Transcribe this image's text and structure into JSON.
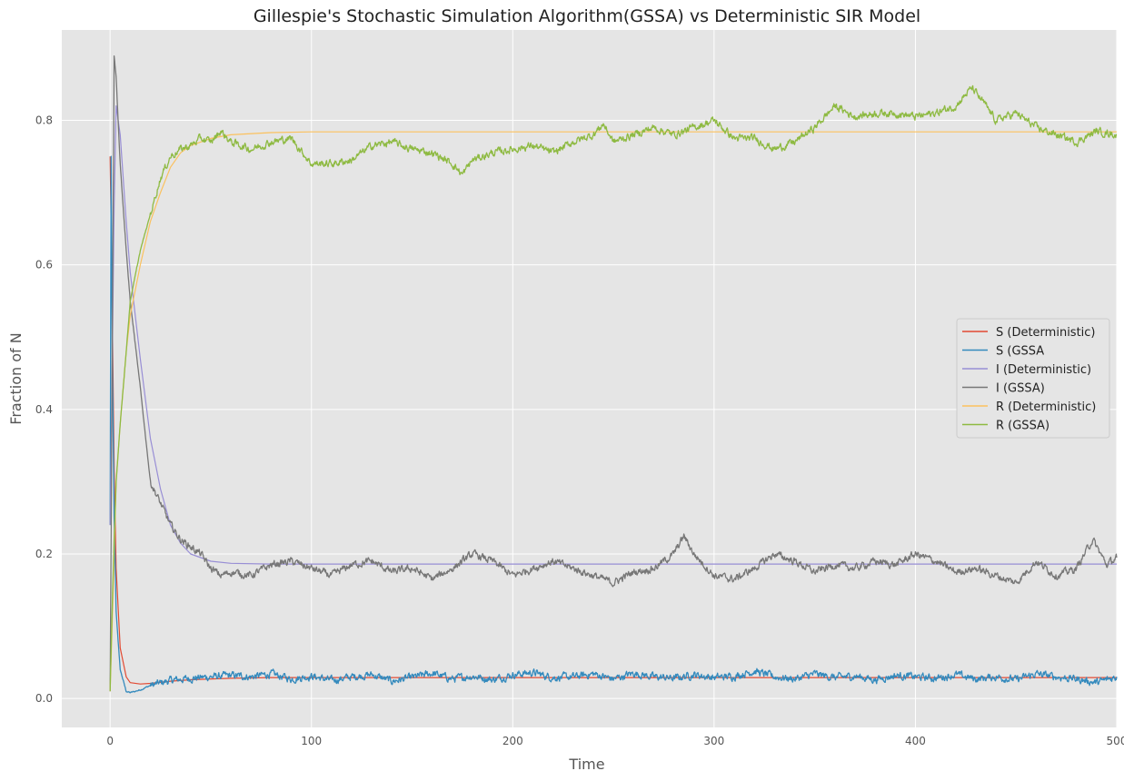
{
  "chart_data": {
    "type": "line",
    "title": "Gillespie's Stochastic Simulation Algorithm(GSSA) vs Deterministic SIR Model",
    "xlabel": "Time",
    "ylabel": "Fraction of N",
    "xlim": [
      -24,
      500
    ],
    "ylim": [
      -0.04,
      0.925
    ],
    "xticks": [
      "0",
      "100",
      "200",
      "300",
      "400",
      "500"
    ],
    "yticks": [
      "0.0",
      "0.2",
      "0.4",
      "0.6",
      "0.8"
    ],
    "grid": true,
    "style": "ggplot",
    "legend_position": "right",
    "series": [
      {
        "name": "S (Deterministic)",
        "color": "#E24A33",
        "x": [
          0,
          1,
          2,
          3,
          5,
          8,
          10,
          15,
          20,
          30,
          40,
          60,
          80,
          100,
          500
        ],
        "y": [
          0.75,
          0.55,
          0.32,
          0.18,
          0.07,
          0.03,
          0.022,
          0.02,
          0.021,
          0.024,
          0.026,
          0.028,
          0.029,
          0.029,
          0.029
        ]
      },
      {
        "name": "S (GSSA",
        "color": "#348ABD",
        "x": [
          0,
          0.5,
          1,
          2,
          3,
          5,
          8,
          10,
          15,
          20,
          30,
          40,
          50,
          60,
          70,
          80,
          90,
          100,
          110,
          120,
          130,
          140,
          150,
          160,
          170,
          180,
          190,
          200,
          210,
          220,
          230,
          240,
          250,
          260,
          270,
          280,
          290,
          300,
          310,
          320,
          330,
          340,
          350,
          360,
          370,
          380,
          390,
          400,
          410,
          420,
          430,
          440,
          450,
          460,
          470,
          480,
          490,
          500
        ],
        "y": [
          0.24,
          0.75,
          0.5,
          0.25,
          0.12,
          0.04,
          0.01,
          0.008,
          0.012,
          0.018,
          0.025,
          0.028,
          0.03,
          0.032,
          0.03,
          0.034,
          0.027,
          0.031,
          0.025,
          0.03,
          0.033,
          0.024,
          0.029,
          0.035,
          0.027,
          0.031,
          0.026,
          0.033,
          0.036,
          0.029,
          0.03,
          0.034,
          0.027,
          0.035,
          0.03,
          0.028,
          0.033,
          0.029,
          0.031,
          0.038,
          0.03,
          0.027,
          0.034,
          0.029,
          0.031,
          0.026,
          0.032,
          0.03,
          0.028,
          0.033,
          0.027,
          0.03,
          0.026,
          0.034,
          0.03,
          0.027,
          0.022,
          0.03
        ]
      },
      {
        "name": "I (Deterministic)",
        "color": "#988ED5",
        "x": [
          0,
          1,
          2,
          3,
          5,
          8,
          10,
          15,
          20,
          25,
          30,
          35,
          40,
          50,
          60,
          80,
          100,
          500
        ],
        "y": [
          0.24,
          0.45,
          0.68,
          0.82,
          0.78,
          0.66,
          0.59,
          0.47,
          0.36,
          0.29,
          0.24,
          0.215,
          0.2,
          0.19,
          0.187,
          0.186,
          0.186,
          0.186
        ]
      },
      {
        "name": "I (GSSA)",
        "color": "#777777",
        "x": [
          0,
          1,
          2,
          3,
          5,
          8,
          10,
          15,
          20,
          25,
          30,
          35,
          40,
          45,
          50,
          55,
          60,
          70,
          80,
          90,
          100,
          110,
          120,
          130,
          140,
          150,
          160,
          170,
          180,
          190,
          200,
          210,
          220,
          230,
          240,
          250,
          260,
          270,
          280,
          285,
          290,
          300,
          310,
          320,
          330,
          340,
          350,
          360,
          370,
          380,
          390,
          400,
          410,
          420,
          430,
          440,
          450,
          460,
          470,
          480,
          488,
          495,
          500
        ],
        "y": [
          0.01,
          0.45,
          0.89,
          0.86,
          0.74,
          0.62,
          0.55,
          0.43,
          0.3,
          0.27,
          0.24,
          0.22,
          0.21,
          0.2,
          0.18,
          0.17,
          0.175,
          0.17,
          0.185,
          0.19,
          0.18,
          0.17,
          0.185,
          0.19,
          0.175,
          0.18,
          0.165,
          0.18,
          0.2,
          0.19,
          0.17,
          0.18,
          0.19,
          0.18,
          0.17,
          0.16,
          0.175,
          0.18,
          0.2,
          0.225,
          0.2,
          0.17,
          0.165,
          0.18,
          0.2,
          0.19,
          0.175,
          0.185,
          0.18,
          0.19,
          0.185,
          0.2,
          0.19,
          0.175,
          0.18,
          0.17,
          0.16,
          0.19,
          0.17,
          0.18,
          0.22,
          0.185,
          0.195
        ]
      },
      {
        "name": "R (Deterministic)",
        "color": "#FBC15E",
        "x": [
          0,
          1,
          2,
          3,
          5,
          8,
          10,
          15,
          20,
          25,
          30,
          35,
          40,
          50,
          60,
          80,
          100,
          500
        ],
        "y": [
          0.01,
          0.1,
          0.2,
          0.3,
          0.38,
          0.48,
          0.53,
          0.6,
          0.66,
          0.7,
          0.735,
          0.755,
          0.765,
          0.775,
          0.78,
          0.783,
          0.784,
          0.784
        ]
      },
      {
        "name": "R (GSSA)",
        "color": "#8EBA42",
        "x": [
          0,
          1,
          2,
          3,
          5,
          8,
          10,
          15,
          20,
          25,
          30,
          35,
          40,
          45,
          50,
          55,
          60,
          70,
          80,
          90,
          100,
          110,
          120,
          130,
          140,
          150,
          160,
          170,
          175,
          180,
          190,
          200,
          210,
          220,
          230,
          240,
          245,
          250,
          260,
          270,
          280,
          290,
          300,
          310,
          320,
          330,
          340,
          350,
          360,
          370,
          380,
          390,
          400,
          410,
          420,
          428,
          435,
          440,
          450,
          460,
          470,
          480,
          490,
          500
        ],
        "y": [
          0.01,
          0.12,
          0.22,
          0.3,
          0.38,
          0.48,
          0.55,
          0.62,
          0.67,
          0.72,
          0.75,
          0.76,
          0.765,
          0.775,
          0.77,
          0.785,
          0.77,
          0.76,
          0.77,
          0.775,
          0.74,
          0.74,
          0.745,
          0.765,
          0.77,
          0.76,
          0.755,
          0.74,
          0.725,
          0.745,
          0.755,
          0.76,
          0.765,
          0.755,
          0.77,
          0.78,
          0.795,
          0.77,
          0.78,
          0.79,
          0.78,
          0.79,
          0.8,
          0.775,
          0.775,
          0.76,
          0.77,
          0.79,
          0.82,
          0.805,
          0.81,
          0.81,
          0.805,
          0.81,
          0.82,
          0.845,
          0.82,
          0.8,
          0.81,
          0.79,
          0.78,
          0.77,
          0.785,
          0.78
        ]
      }
    ]
  }
}
